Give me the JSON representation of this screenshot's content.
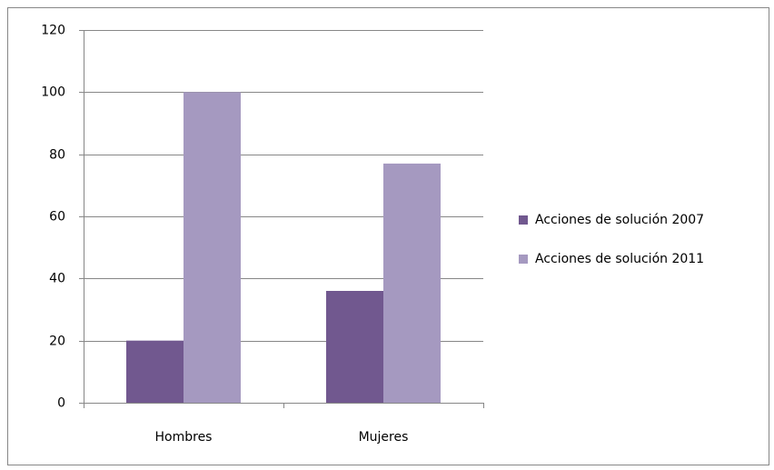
{
  "chart_data": {
    "type": "bar",
    "categories": [
      "Hombres",
      "Mujeres"
    ],
    "series": [
      {
        "name": "Acciones de solución 2007",
        "color": "#71588f",
        "values": [
          20,
          36
        ]
      },
      {
        "name": "Acciones de solución 2011",
        "color": "#a599c0",
        "values": [
          100,
          77
        ]
      }
    ],
    "ylim": [
      0,
      120
    ],
    "yticks": [
      0,
      20,
      40,
      60,
      80,
      100,
      120
    ],
    "grid": true,
    "legend": "right"
  }
}
